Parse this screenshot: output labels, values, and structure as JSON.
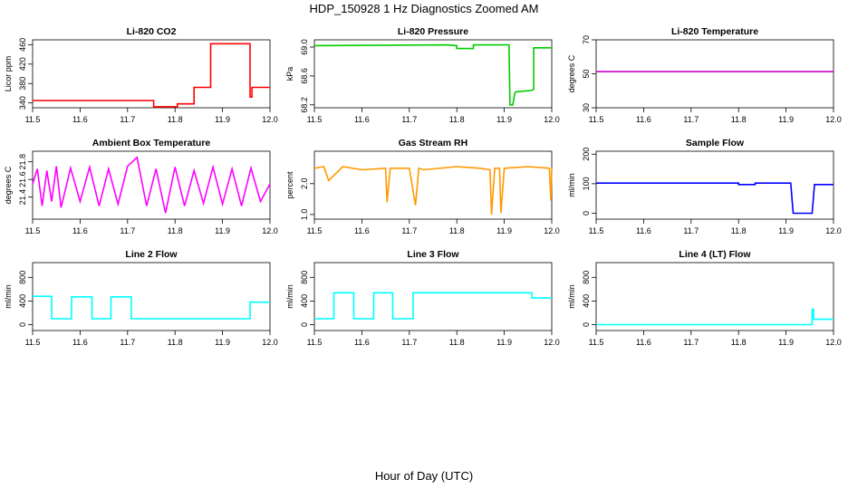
{
  "figure": {
    "title": "HDP_150928  1 Hz Diagnostics Zoomed AM",
    "xlabel": "Hour of Day (UTC)"
  },
  "chart_data": [
    {
      "type": "line",
      "title": "Li-820 CO2",
      "ylabel": "Licor ppm",
      "color": "#ff0000",
      "xlim": [
        11.5,
        12.0
      ],
      "ylim": [
        330,
        470
      ],
      "xticks": [
        "11.5",
        "11.6",
        "11.7",
        "11.8",
        "11.9",
        "12.0"
      ],
      "yticks": [
        "340",
        "380",
        "420",
        "460"
      ],
      "series": [
        {
          "x": [
            11.5,
            11.755,
            11.755,
            11.805,
            11.805,
            11.84,
            11.84,
            11.875,
            11.875,
            11.958,
            11.958,
            11.962,
            11.962,
            12.0
          ],
          "values": [
            345,
            345,
            332,
            332,
            338,
            338,
            372,
            372,
            462,
            462,
            352,
            352,
            372,
            372
          ]
        }
      ]
    },
    {
      "type": "line",
      "title": "Li-820 Pressure",
      "ylabel": "kPa",
      "color": "#00cc00",
      "xlim": [
        11.5,
        12.0
      ],
      "ylim": [
        68.16,
        69.1
      ],
      "xticks": [
        "11.5",
        "11.6",
        "11.7",
        "11.8",
        "11.9",
        "12.0"
      ],
      "yticks": [
        "68.2",
        "68.6",
        "69.0"
      ],
      "series": [
        {
          "x": [
            11.5,
            11.78,
            11.8,
            11.8,
            11.835,
            11.835,
            11.91,
            11.912,
            11.918,
            11.922,
            11.924,
            11.958,
            11.962,
            11.962,
            12.0
          ],
          "values": [
            69.02,
            69.03,
            69.02,
            68.98,
            68.98,
            69.03,
            69.03,
            68.2,
            68.2,
            68.35,
            68.38,
            68.4,
            68.42,
            68.99,
            68.99
          ]
        }
      ]
    },
    {
      "type": "line",
      "title": "Li-820 Temperature",
      "ylabel": "degrees C",
      "color": "#cc00cc",
      "xlim": [
        11.5,
        12.0
      ],
      "ylim": [
        30,
        70
      ],
      "xticks": [
        "11.5",
        "11.6",
        "11.7",
        "11.8",
        "11.9",
        "12.0"
      ],
      "yticks": [
        "30",
        "50",
        "70"
      ],
      "series": [
        {
          "x": [
            11.5,
            12.0
          ],
          "values": [
            51.3,
            51.3
          ]
        }
      ]
    },
    {
      "type": "line",
      "title": "Ambient Box Temperature",
      "ylabel": "degrees C",
      "color": "#ff00ff",
      "xlim": [
        11.5,
        12.0
      ],
      "ylim": [
        21.15,
        21.92
      ],
      "xticks": [
        "11.5",
        "11.6",
        "11.7",
        "11.8",
        "11.9",
        "12.0"
      ],
      "yticks": [
        "21.4",
        "21.6",
        "21.8"
      ],
      "series": [
        {
          "x": [
            11.5,
            11.51,
            11.52,
            11.53,
            11.54,
            11.55,
            11.56,
            11.58,
            11.6,
            11.62,
            11.64,
            11.66,
            11.68,
            11.7,
            11.72,
            11.74,
            11.76,
            11.78,
            11.8,
            11.82,
            11.84,
            11.86,
            11.88,
            11.9,
            11.92,
            11.94,
            11.96,
            11.98,
            12.0
          ],
          "values": [
            21.55,
            21.72,
            21.3,
            21.7,
            21.35,
            21.75,
            21.28,
            21.73,
            21.35,
            21.74,
            21.3,
            21.72,
            21.32,
            21.75,
            21.85,
            21.3,
            21.72,
            21.22,
            21.74,
            21.3,
            21.7,
            21.33,
            21.74,
            21.32,
            21.72,
            21.3,
            21.73,
            21.35,
            21.55
          ]
        }
      ]
    },
    {
      "type": "line",
      "title": "Gas Stream RH",
      "ylabel": "percent",
      "color": "#ff9900",
      "xlim": [
        11.5,
        12.0
      ],
      "ylim": [
        0.85,
        3.05
      ],
      "xticks": [
        "11.5",
        "11.6",
        "11.7",
        "11.8",
        "11.9",
        "12.0"
      ],
      "yticks": [
        "1.0",
        "2.0"
      ],
      "series": [
        {
          "x": [
            11.5,
            11.52,
            11.53,
            11.56,
            11.6,
            11.65,
            11.653,
            11.66,
            11.7,
            11.713,
            11.72,
            11.73,
            11.8,
            11.85,
            11.87,
            11.873,
            11.88,
            11.89,
            11.893,
            11.9,
            11.95,
            11.995,
            11.998,
            12.0
          ],
          "values": [
            2.5,
            2.55,
            2.1,
            2.55,
            2.45,
            2.5,
            1.4,
            2.5,
            2.5,
            1.3,
            2.5,
            2.45,
            2.55,
            2.5,
            2.45,
            1.0,
            2.5,
            2.5,
            1.05,
            2.5,
            2.55,
            2.5,
            1.45,
            2.5
          ]
        }
      ]
    },
    {
      "type": "line",
      "title": "Sample Flow",
      "ylabel": "ml/min",
      "color": "#0000ff",
      "xlim": [
        11.5,
        12.0
      ],
      "ylim": [
        -20,
        210
      ],
      "xticks": [
        "11.5",
        "11.6",
        "11.7",
        "11.8",
        "11.9",
        "12.0"
      ],
      "yticks": [
        "0",
        "100",
        "200"
      ],
      "series": [
        {
          "x": [
            11.5,
            11.8,
            11.8,
            11.835,
            11.835,
            11.91,
            11.912,
            11.915,
            11.955,
            11.957,
            11.96,
            12.0
          ],
          "values": [
            102,
            102,
            97,
            97,
            102,
            102,
            60,
            0,
            0,
            40,
            97,
            97
          ]
        }
      ]
    },
    {
      "type": "line",
      "title": "Line 2 Flow",
      "ylabel": "ml/min",
      "color": "#00ffff",
      "xlim": [
        11.5,
        12.0
      ],
      "ylim": [
        -100,
        1050
      ],
      "xticks": [
        "11.5",
        "11.6",
        "11.7",
        "11.8",
        "11.9",
        "12.0"
      ],
      "yticks": [
        "0",
        "400",
        "800"
      ],
      "series": [
        {
          "x": [
            11.5,
            11.54,
            11.54,
            11.582,
            11.582,
            11.625,
            11.625,
            11.665,
            11.665,
            11.708,
            11.708,
            11.958,
            11.958,
            12.0
          ],
          "values": [
            480,
            480,
            100,
            100,
            470,
            470,
            100,
            100,
            470,
            470,
            100,
            100,
            380,
            380
          ]
        }
      ]
    },
    {
      "type": "line",
      "title": "Line 3 Flow",
      "ylabel": "ml/min",
      "color": "#00ffff",
      "xlim": [
        11.5,
        12.0
      ],
      "ylim": [
        -100,
        1050
      ],
      "xticks": [
        "11.5",
        "11.6",
        "11.7",
        "11.8",
        "11.9",
        "12.0"
      ],
      "yticks": [
        "0",
        "400",
        "800"
      ],
      "series": [
        {
          "x": [
            11.5,
            11.541,
            11.541,
            11.583,
            11.583,
            11.625,
            11.625,
            11.665,
            11.665,
            11.708,
            11.708,
            11.958,
            11.958,
            12.0
          ],
          "values": [
            100,
            100,
            540,
            540,
            100,
            100,
            540,
            540,
            100,
            100,
            540,
            540,
            450,
            450
          ]
        }
      ]
    },
    {
      "type": "line",
      "title": "Line 4 (LT) Flow",
      "ylabel": "ml/min",
      "color": "#00ffff",
      "xlim": [
        11.5,
        12.0
      ],
      "ylim": [
        -100,
        1050
      ],
      "xticks": [
        "11.5",
        "11.6",
        "11.7",
        "11.8",
        "11.9",
        "12.0"
      ],
      "yticks": [
        "0",
        "400",
        "800"
      ],
      "series": [
        {
          "x": [
            11.5,
            11.955,
            11.955,
            11.958,
            11.958,
            12.0
          ],
          "values": [
            0,
            0,
            260,
            260,
            90,
            90
          ]
        }
      ]
    }
  ]
}
